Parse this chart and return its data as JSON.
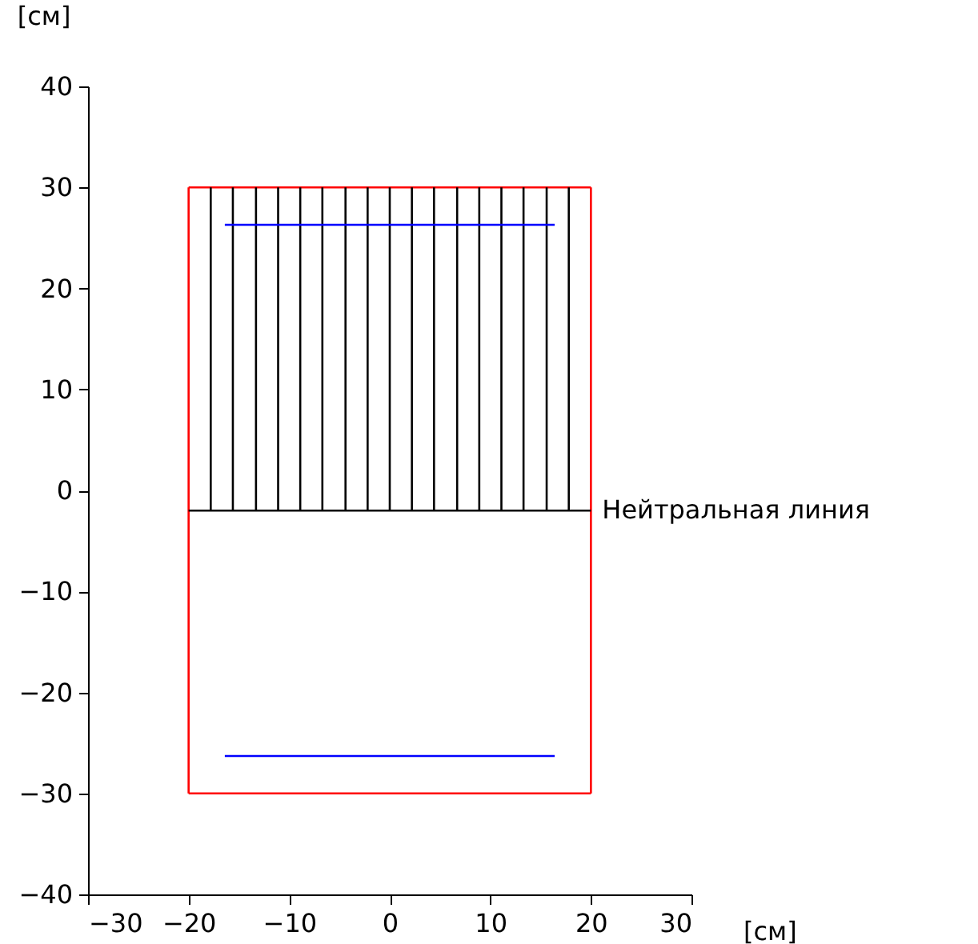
{
  "chart_data": {
    "type": "line",
    "xlabel": "[см]",
    "ylabel": "[см]",
    "xlim": [
      -30,
      30
    ],
    "xticks": [
      -30,
      -20,
      -10,
      0,
      10,
      20,
      30
    ],
    "ylim": [
      -40,
      40
    ],
    "yticks": [
      -40,
      -30,
      -20,
      -10,
      0,
      10,
      20,
      30,
      40
    ],
    "grid": false,
    "legend": false,
    "annotations": [
      {
        "text": "Нейтральная линия",
        "x": 20,
        "y": -2
      }
    ],
    "series": [
      {
        "color": "#ff0000",
        "x": [
          -20,
          20
        ],
        "values": [
          30,
          30
        ]
      },
      {
        "color": "#ff0000",
        "x": [
          -20,
          20
        ],
        "values": [
          -30,
          -30
        ]
      },
      {
        "color": "#ff0000",
        "x": [
          -20,
          -20
        ],
        "values": [
          -30,
          30
        ]
      },
      {
        "color": "#ff0000",
        "x": [
          20,
          20
        ],
        "values": [
          -30,
          30
        ]
      },
      {
        "color": "#000000",
        "x": [
          -20,
          20
        ],
        "values": [
          -2,
          -2
        ]
      },
      {
        "color": "#000000",
        "x": [
          -17.8,
          -17.8
        ],
        "values": [
          -2,
          30
        ]
      },
      {
        "color": "#000000",
        "x": [
          -15.6,
          -15.6
        ],
        "values": [
          -2,
          30
        ]
      },
      {
        "color": "#000000",
        "x": [
          -13.3,
          -13.3
        ],
        "values": [
          -2,
          30
        ]
      },
      {
        "color": "#000000",
        "x": [
          -11.1,
          -11.1
        ],
        "values": [
          -2,
          30
        ]
      },
      {
        "color": "#000000",
        "x": [
          -8.9,
          -8.9
        ],
        "values": [
          -2,
          30
        ]
      },
      {
        "color": "#000000",
        "x": [
          -6.7,
          -6.7
        ],
        "values": [
          -2,
          30
        ]
      },
      {
        "color": "#000000",
        "x": [
          -4.4,
          -4.4
        ],
        "values": [
          -2,
          30
        ]
      },
      {
        "color": "#000000",
        "x": [
          -2.2,
          -2.2
        ],
        "values": [
          -2,
          30
        ]
      },
      {
        "color": "#000000",
        "x": [
          0,
          0
        ],
        "values": [
          -2,
          30
        ]
      },
      {
        "color": "#000000",
        "x": [
          2.2,
          2.2
        ],
        "values": [
          -2,
          30
        ]
      },
      {
        "color": "#000000",
        "x": [
          4.4,
          4.4
        ],
        "values": [
          -2,
          30
        ]
      },
      {
        "color": "#000000",
        "x": [
          6.7,
          6.7
        ],
        "values": [
          -2,
          30
        ]
      },
      {
        "color": "#000000",
        "x": [
          8.9,
          8.9
        ],
        "values": [
          -2,
          30
        ]
      },
      {
        "color": "#000000",
        "x": [
          11.1,
          11.1
        ],
        "values": [
          -2,
          30
        ]
      },
      {
        "color": "#000000",
        "x": [
          13.3,
          13.3
        ],
        "values": [
          -2,
          30
        ]
      },
      {
        "color": "#000000",
        "x": [
          15.6,
          15.6
        ],
        "values": [
          -2,
          30
        ]
      },
      {
        "color": "#000000",
        "x": [
          17.8,
          17.8
        ],
        "values": [
          -2,
          30
        ]
      },
      {
        "color": "#0000ff",
        "x": [
          -16.4,
          16.4
        ],
        "values": [
          26.3,
          26.3
        ]
      },
      {
        "color": "#0000ff",
        "x": [
          -16.4,
          16.4
        ],
        "values": [
          -26.3,
          -26.3
        ]
      }
    ]
  }
}
